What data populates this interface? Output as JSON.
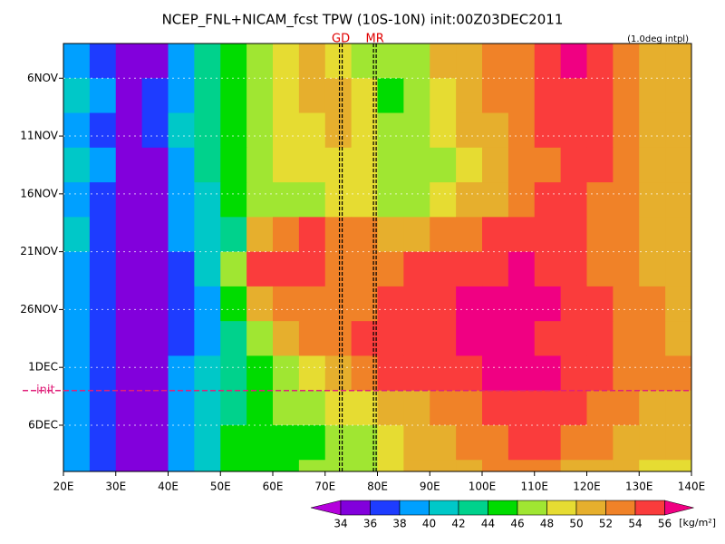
{
  "chart_data": {
    "type": "heatmap",
    "title": "NCEP_FNL+NICAM_fcst TPW (10S-10N) init:00Z03DEC2011",
    "subtitle": "(1.0deg intpl)",
    "x": [
      20,
      25,
      30,
      35,
      40,
      45,
      50,
      55,
      60,
      65,
      70,
      75,
      80,
      85,
      90,
      95,
      100,
      105,
      110,
      115,
      120,
      125,
      130,
      135
    ],
    "y": [
      3,
      6,
      9,
      12,
      15,
      18,
      21,
      24,
      27,
      30,
      33,
      36,
      39
    ],
    "values": [
      [
        39,
        37,
        35,
        35,
        38,
        42,
        44,
        46,
        48,
        50,
        49,
        47,
        46,
        47,
        50,
        51,
        52,
        53,
        55,
        56,
        54,
        52,
        51,
        50
      ],
      [
        40,
        38,
        35,
        36,
        39,
        42,
        44,
        46,
        48,
        50,
        50,
        48,
        45,
        46,
        49,
        51,
        52,
        53,
        55,
        55,
        54,
        52,
        51,
        50
      ],
      [
        39,
        37,
        35,
        36,
        40,
        43,
        45,
        46,
        48,
        49,
        50,
        48,
        46,
        46,
        48,
        50,
        51,
        52,
        54,
        55,
        54,
        53,
        51,
        50
      ],
      [
        40,
        38,
        35,
        35,
        39,
        42,
        44,
        46,
        48,
        48,
        49,
        48,
        47,
        46,
        47,
        49,
        50,
        52,
        53,
        54,
        54,
        52,
        51,
        50
      ],
      [
        39,
        37,
        34,
        35,
        38,
        41,
        44,
        46,
        47,
        47,
        48,
        48,
        47,
        47,
        49,
        50,
        51,
        53,
        54,
        54,
        53,
        52,
        51,
        50
      ],
      [
        40,
        37,
        34,
        35,
        38,
        40,
        43,
        50,
        53,
        54,
        53,
        52,
        51,
        51,
        52,
        53,
        54,
        55,
        55,
        54,
        53,
        52,
        51,
        51
      ],
      [
        39,
        36,
        34,
        34,
        37,
        40,
        46,
        54,
        55,
        55,
        53,
        52,
        53,
        54,
        54,
        55,
        55,
        56,
        55,
        54,
        53,
        52,
        51,
        51
      ],
      [
        38,
        36,
        34,
        34,
        37,
        39,
        44,
        50,
        53,
        53,
        52,
        53,
        54,
        55,
        55,
        56,
        56,
        57,
        56,
        55,
        54,
        53,
        52,
        51
      ],
      [
        38,
        36,
        34,
        35,
        37,
        39,
        43,
        47,
        51,
        52,
        53,
        54,
        54,
        55,
        55,
        56,
        57,
        56,
        55,
        55,
        54,
        53,
        52,
        51
      ],
      [
        39,
        37,
        35,
        35,
        38,
        40,
        42,
        45,
        47,
        49,
        51,
        53,
        54,
        54,
        55,
        55,
        56,
        57,
        56,
        55,
        54,
        53,
        53,
        52
      ],
      [
        39,
        37,
        35,
        35,
        38,
        41,
        43,
        45,
        46,
        47,
        48,
        49,
        50,
        50,
        52,
        53,
        54,
        55,
        55,
        54,
        53,
        52,
        51,
        51
      ],
      [
        38,
        37,
        35,
        35,
        38,
        41,
        44,
        45,
        45,
        45,
        46,
        47,
        49,
        50,
        51,
        52,
        53,
        54,
        54,
        53,
        52,
        51,
        50,
        50
      ],
      [
        38,
        36,
        35,
        35,
        38,
        41,
        44,
        45,
        45,
        46,
        46,
        47,
        49,
        50,
        51,
        51,
        52,
        53,
        52,
        51,
        50,
        50,
        49,
        49
      ]
    ],
    "xlim": [
      20,
      140
    ],
    "ylim": [
      3,
      40
    ],
    "xticks": [
      {
        "value": 20,
        "label": "20E"
      },
      {
        "value": 30,
        "label": "30E"
      },
      {
        "value": 40,
        "label": "40E"
      },
      {
        "value": 50,
        "label": "50E"
      },
      {
        "value": 60,
        "label": "60E"
      },
      {
        "value": 70,
        "label": "70E"
      },
      {
        "value": 80,
        "label": "80E"
      },
      {
        "value": 90,
        "label": "90E"
      },
      {
        "value": 100,
        "label": "100E"
      },
      {
        "value": 110,
        "label": "110E"
      },
      {
        "value": 120,
        "label": "120E"
      },
      {
        "value": 130,
        "label": "130E"
      },
      {
        "value": 140,
        "label": "140E"
      }
    ],
    "yticks": [
      {
        "value": 6,
        "label": "6NOV"
      },
      {
        "value": 11,
        "label": "11NOV"
      },
      {
        "value": 16,
        "label": "16NOV"
      },
      {
        "value": 21,
        "label": "21NOV"
      },
      {
        "value": 26,
        "label": "26NOV"
      },
      {
        "value": 31,
        "label": "1DEC"
      },
      {
        "value": 36,
        "label": "6DEC"
      }
    ],
    "annotations": [
      {
        "label": "GD",
        "x": 73
      },
      {
        "label": "MR",
        "x": 79.5
      }
    ],
    "init": {
      "label": "init",
      "y": 33
    },
    "levels": [
      34,
      36,
      38,
      40,
      42,
      44,
      46,
      48,
      50,
      52,
      54,
      56
    ],
    "colors": [
      "#b400dc",
      "#8200dc",
      "#1e3cff",
      "#00a0ff",
      "#00c8c8",
      "#00d28c",
      "#00dc00",
      "#a0e632",
      "#e6dc32",
      "#e6af2d",
      "#f08228",
      "#fa3c3c",
      "#f00082"
    ],
    "unit": "[kg/m²]"
  }
}
